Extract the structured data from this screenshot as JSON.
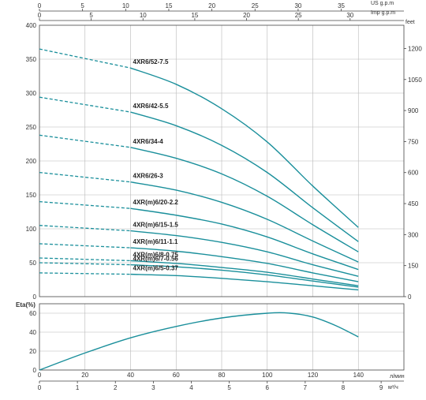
{
  "chart_data": [
    {
      "type": "line",
      "title": "",
      "xlabel": "л/мин",
      "ylabel": "",
      "xlim": [
        0,
        150
      ],
      "ylim": [
        0,
        400
      ],
      "right_axis": {
        "label": "feet",
        "ticks": [
          0,
          150,
          300,
          450,
          600,
          750,
          900,
          1050,
          1200
        ]
      },
      "top_axes": [
        {
          "label": "US g.p.m",
          "ticks": [
            0,
            5,
            10,
            15,
            20,
            25,
            30,
            35
          ]
        },
        {
          "label": "Imp g.p.m",
          "ticks": [
            0,
            5,
            10,
            15,
            20,
            25,
            30
          ]
        }
      ],
      "grid": true,
      "series": [
        {
          "name": "4XR6/52-7.5",
          "points": [
            [
              0,
              365
            ],
            [
              40,
              337
            ],
            [
              60,
              313
            ],
            [
              80,
              277
            ],
            [
              100,
              228
            ],
            [
              120,
              163
            ],
            [
              140,
              102
            ]
          ]
        },
        {
          "name": "4XR6/42-5.5",
          "points": [
            [
              0,
              294
            ],
            [
              40,
              272
            ],
            [
              60,
              252
            ],
            [
              80,
              223
            ],
            [
              100,
              183
            ],
            [
              120,
              131
            ],
            [
              140,
              81
            ]
          ]
        },
        {
          "name": "4XR6/34-4",
          "points": [
            [
              0,
              238
            ],
            [
              40,
              220
            ],
            [
              60,
              204
            ],
            [
              80,
              181
            ],
            [
              100,
              148
            ],
            [
              120,
              106
            ],
            [
              140,
              66
            ]
          ]
        },
        {
          "name": "4XR6/26-3",
          "points": [
            [
              0,
              183
            ],
            [
              40,
              169
            ],
            [
              60,
              157
            ],
            [
              80,
              139
            ],
            [
              100,
              114
            ],
            [
              120,
              82
            ],
            [
              140,
              51
            ]
          ]
        },
        {
          "name": "4XR(m)6/20-2.2",
          "points": [
            [
              0,
              140
            ],
            [
              40,
              130
            ],
            [
              60,
              120
            ],
            [
              80,
              107
            ],
            [
              100,
              88
            ],
            [
              120,
              63
            ],
            [
              140,
              40
            ]
          ]
        },
        {
          "name": "4XR(m)6/15-1.5",
          "points": [
            [
              0,
              105
            ],
            [
              40,
              97
            ],
            [
              60,
              90
            ],
            [
              80,
              80
            ],
            [
              100,
              66
            ],
            [
              120,
              47
            ],
            [
              140,
              30
            ]
          ]
        },
        {
          "name": "4XR(m)6/11-1.1",
          "points": [
            [
              0,
              78
            ],
            [
              40,
              72
            ],
            [
              60,
              67
            ],
            [
              80,
              59
            ],
            [
              100,
              49
            ],
            [
              120,
              35
            ],
            [
              140,
              22
            ]
          ]
        },
        {
          "name": "4XR(m)6/8-0.75",
          "points": [
            [
              0,
              57
            ],
            [
              40,
              53
            ],
            [
              60,
              49
            ],
            [
              80,
              43
            ],
            [
              100,
              36
            ],
            [
              120,
              26
            ],
            [
              140,
              16
            ]
          ]
        },
        {
          "name": "4XR(m)6/7-0.56",
          "points": [
            [
              0,
              50
            ],
            [
              40,
              47
            ],
            [
              60,
              44
            ],
            [
              80,
              39
            ],
            [
              100,
              32
            ],
            [
              120,
              23
            ],
            [
              140,
              14
            ]
          ]
        },
        {
          "name": "4XR(m)6/5-0.37",
          "points": [
            [
              0,
              35
            ],
            [
              40,
              33
            ],
            [
              60,
              31
            ],
            [
              80,
              27
            ],
            [
              100,
              22
            ],
            [
              120,
              16
            ],
            [
              140,
              10
            ]
          ]
        }
      ],
      "dashed_until_x": 40
    },
    {
      "type": "line",
      "title": "",
      "xlabel": "м³/ч",
      "ylabel": "Eta(%)",
      "xlim": [
        0,
        150
      ],
      "ylim": [
        0,
        70
      ],
      "grid": true,
      "x_ticks": [
        0,
        20,
        40,
        60,
        80,
        100,
        120,
        140
      ],
      "m3h_ticks": [
        0,
        1,
        2,
        3,
        4,
        5,
        6,
        7,
        8,
        9
      ],
      "y_ticks": [
        0,
        20,
        40,
        60
      ],
      "series": [
        {
          "name": "",
          "points": [
            [
              0,
              0
            ],
            [
              20,
              18
            ],
            [
              40,
              34
            ],
            [
              60,
              46
            ],
            [
              80,
              55
            ],
            [
              100,
              60
            ],
            [
              110,
              60
            ],
            [
              120,
              56
            ],
            [
              130,
              47
            ],
            [
              140,
              35
            ]
          ]
        }
      ]
    }
  ],
  "labels": {
    "top_us": "US g.p.m",
    "top_imp": "Imp g.p.m",
    "right_unit": "feet",
    "eta_label": "Eta(%)",
    "unit_lmin": "л/мин",
    "unit_m3h": "м³/ч"
  },
  "colors": {
    "curve": "#1a8f9b",
    "frame": "#444444",
    "grid": "#b8b8b8"
  }
}
